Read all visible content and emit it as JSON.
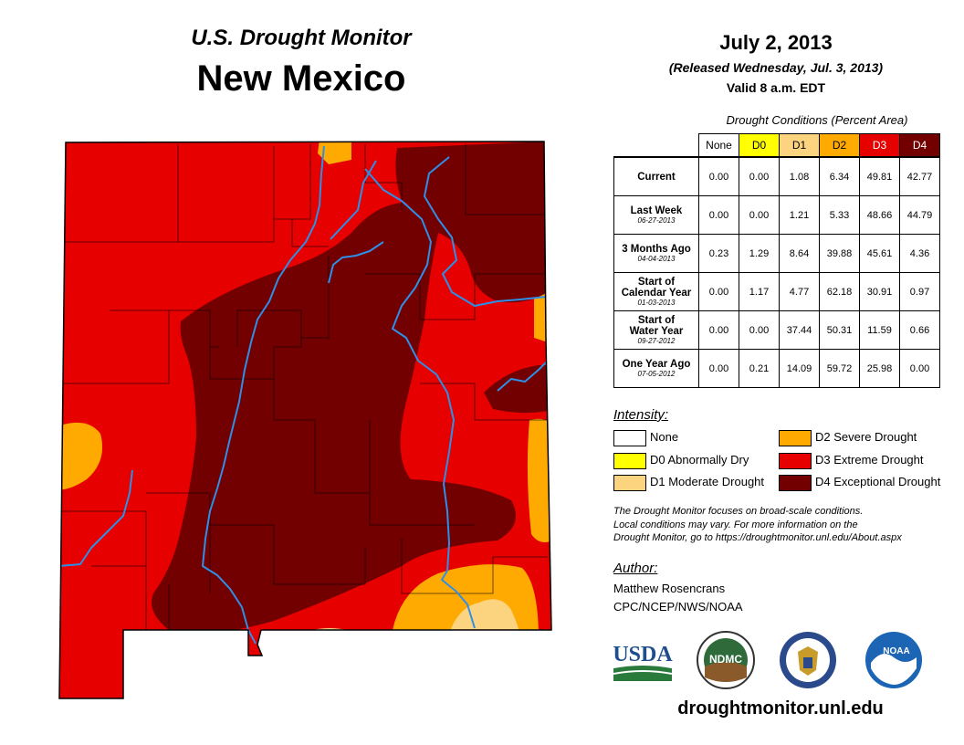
{
  "header": {
    "subtitle": "U.S. Drought Monitor",
    "title": "New Mexico"
  },
  "release": {
    "date": "July 2, 2013",
    "released": "(Released Wednesday, Jul. 3, 2013)",
    "valid": "Valid 8 a.m. EDT"
  },
  "colors": {
    "none": "#ffffff",
    "d0": "#ffff00",
    "d1": "#fcd37f",
    "d2": "#ffaa00",
    "d3": "#e60000",
    "d4": "#730000",
    "river": "#2e8fe8"
  },
  "table": {
    "caption": "Drought Conditions (Percent Area)",
    "columns": [
      "None",
      "D0",
      "D1",
      "D2",
      "D3",
      "D4"
    ],
    "rows": [
      {
        "label": "Current",
        "label2": "",
        "date": "",
        "values": [
          "0.00",
          "0.00",
          "1.08",
          "6.34",
          "49.81",
          "42.77"
        ]
      },
      {
        "label": "Last Week",
        "label2": "",
        "date": "06-27-2013",
        "values": [
          "0.00",
          "0.00",
          "1.21",
          "5.33",
          "48.66",
          "44.79"
        ]
      },
      {
        "label": "3 Months Ago",
        "label2": "",
        "date": "04-04-2013",
        "values": [
          "0.23",
          "1.29",
          "8.64",
          "39.88",
          "45.61",
          "4.36"
        ]
      },
      {
        "label": "Start of",
        "label2": "Calendar Year",
        "date": "01-03-2013",
        "values": [
          "0.00",
          "1.17",
          "4.77",
          "62.18",
          "30.91",
          "0.97"
        ]
      },
      {
        "label": "Start of",
        "label2": "Water Year",
        "date": "09-27-2012",
        "values": [
          "0.00",
          "0.00",
          "37.44",
          "50.31",
          "11.59",
          "0.66"
        ]
      },
      {
        "label": "One Year Ago",
        "label2": "",
        "date": "07-05-2012",
        "values": [
          "0.00",
          "0.21",
          "14.09",
          "59.72",
          "25.98",
          "0.00"
        ]
      }
    ]
  },
  "legend": {
    "title": "Intensity:",
    "items": [
      {
        "label": "None"
      },
      {
        "label": "D0 Abnormally Dry"
      },
      {
        "label": "D1 Moderate Drought"
      },
      {
        "label": "D2 Severe Drought"
      },
      {
        "label": "D3 Extreme Drought"
      },
      {
        "label": "D4 Exceptional Drought"
      }
    ]
  },
  "note": {
    "line1": "The Drought Monitor focuses on broad-scale conditions.",
    "line2": "Local conditions may vary. For more information on the",
    "line3": "Drought Monitor, go to https://droughtmonitor.unl.edu/About.aspx"
  },
  "author": {
    "title": "Author:",
    "name": "Matthew Rosencrans",
    "org": "CPC/NCEP/NWS/NOAA"
  },
  "logos": {
    "usda": "USDA",
    "ndmc": "NDMC",
    "noaa": "NOAA"
  },
  "website": "droughtmonitor.unl.edu"
}
